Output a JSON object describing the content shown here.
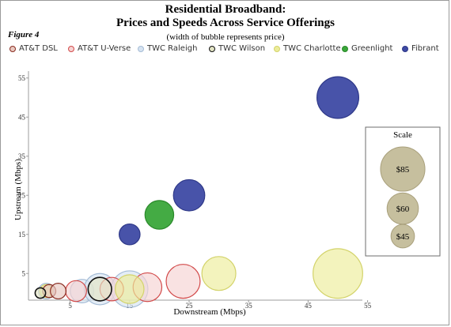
{
  "header": {
    "title_line1": "Residential Broadband:",
    "title_line2": "Prices and Speeds Across Service Offerings",
    "subtitle": "(width of bubble represents price)",
    "figure_label": "Figure 4"
  },
  "chart_data": {
    "type": "bubble",
    "title": "Residential Broadband: Prices and Speeds Across Service Offerings",
    "xlabel": "Downstream (Mbps)",
    "ylabel": "Upstream (Mbps)",
    "xlim": [
      -5,
      58
    ],
    "ylim": [
      -2,
      58
    ],
    "xticks": [
      5,
      15,
      25,
      35,
      45,
      55
    ],
    "yticks": [
      5,
      15,
      25,
      35,
      45,
      55
    ],
    "grid": false,
    "legend_position": "top",
    "size_encodes": "price",
    "series": [
      {
        "name": "AT&T DSL",
        "color": "#e8c8c0",
        "stroke": "#8a2c20",
        "points": [
          {
            "x": 1.5,
            "y": 0.5,
            "price": 25
          },
          {
            "x": 3,
            "y": 0.5,
            "price": 30
          }
        ]
      },
      {
        "name": "AT&T U-Verse",
        "color": "#f6d2d2",
        "stroke": "#d24a4a",
        "points": [
          {
            "x": 6,
            "y": 0.5,
            "price": 40
          },
          {
            "x": 12,
            "y": 1,
            "price": 45
          },
          {
            "x": 18,
            "y": 1.5,
            "price": 55
          },
          {
            "x": 24,
            "y": 3,
            "price": 65
          }
        ]
      },
      {
        "name": "TWC Raleigh",
        "color": "#d6e3f1",
        "stroke": "#a5bcd6",
        "points": [
          {
            "x": 1,
            "y": 0.5,
            "price": 30
          },
          {
            "x": 7,
            "y": 0.5,
            "price": 45
          },
          {
            "x": 10,
            "y": 1,
            "price": 60
          },
          {
            "x": 15,
            "y": 1,
            "price": 70
          }
        ]
      },
      {
        "name": "TWC Wilson",
        "color": "#e2e4c4",
        "stroke": "#111111",
        "points": [
          {
            "x": 0,
            "y": 0,
            "price": 20
          },
          {
            "x": 10,
            "y": 1,
            "price": 45
          }
        ]
      },
      {
        "name": "TWC Charlotte",
        "color": "#ecec9a",
        "stroke": "#d3d36a",
        "points": [
          {
            "x": 1,
            "y": 0.5,
            "price": 25
          },
          {
            "x": 15,
            "y": 1,
            "price": 55
          },
          {
            "x": 30,
            "y": 5,
            "price": 65
          },
          {
            "x": 50,
            "y": 5,
            "price": 95
          }
        ]
      },
      {
        "name": "Greenlight",
        "color": "#3aa63a",
        "stroke": "#2b8a2b",
        "points": [
          {
            "x": 20,
            "y": 20,
            "price": 55
          }
        ]
      },
      {
        "name": "Fibrant",
        "color": "#3e4aa4",
        "stroke": "#2e3888",
        "points": [
          {
            "x": 15,
            "y": 15,
            "price": 40
          },
          {
            "x": 25,
            "y": 25,
            "price": 60
          },
          {
            "x": 50,
            "y": 50,
            "price": 80
          }
        ]
      }
    ],
    "scale_legend": {
      "title": "Scale",
      "color": "#c6bf9e",
      "stroke": "#a9a07c",
      "items": [
        {
          "label": "$85",
          "price": 85
        },
        {
          "label": "$60",
          "price": 60
        },
        {
          "label": "$45",
          "price": 45
        }
      ]
    }
  }
}
